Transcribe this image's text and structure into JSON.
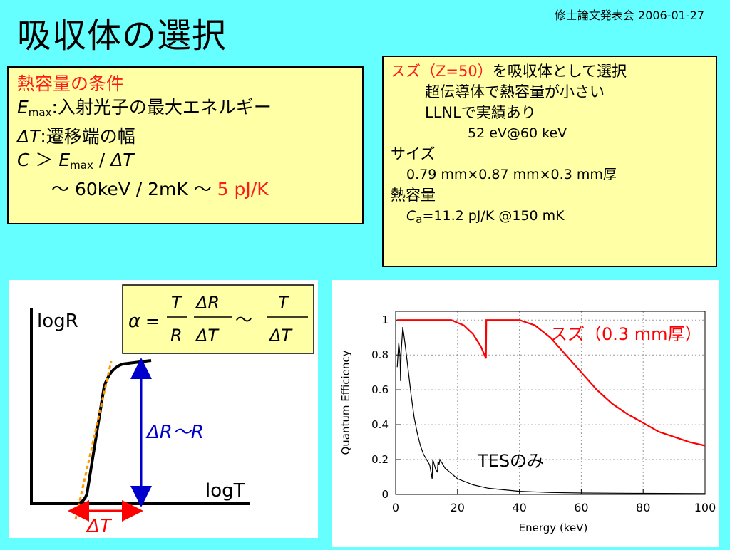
{
  "header": {
    "title": "吸収体の選択",
    "meta": "修士論文発表会 2006-01-27"
  },
  "conditions": {
    "heading": "熱容量の条件",
    "emax_sym": "E",
    "emax_sub": "max",
    "emax_desc": ":入射光子の最大エネルギー",
    "dt_sym": "ΔT",
    "dt_desc": ":遷移端の幅",
    "ineq_c": "C",
    "ineq_gt": " ＞ ",
    "ineq_e": "E",
    "ineq_sub": "max",
    "ineq_slash": " / ",
    "ineq_dt": "ΔT",
    "approx_text": "～ 60keV / 2mK ～ ",
    "approx_result": "5 pJ/K"
  },
  "tin": {
    "line1_red": "スズ（Z=50）",
    "line1_rest": "を吸収体として選択",
    "line2": "超伝導体で熱容量が小さい",
    "line3": "LLNLで実績あり",
    "line4": "52 eV@60 keV",
    "size_label": "サイズ",
    "size_value": "0.79 mm×0.87 mm×0.3 mm厚",
    "hc_label": "熱容量",
    "ca_sym": "C",
    "ca_sub": "a",
    "ca_value": "=11.2 pJ/K @150 mK"
  },
  "transition_plot": {
    "y_axis_label": "logR",
    "x_axis_label": "logT",
    "delta_r_label": "ΔR～R",
    "delta_t_label": "ΔT",
    "formula": {
      "alpha": "α",
      "eq": "=",
      "t1": "T",
      "r1": "R",
      "dr": "ΔR",
      "dt1": "ΔT",
      "tilde": "～",
      "t2": "T",
      "dt2": "ΔT"
    }
  },
  "chart_data": {
    "type": "line",
    "xlabel": "Energy (keV)",
    "ylabel": "Quantum Efficiency",
    "xlim": [
      0,
      100
    ],
    "ylim": [
      0,
      1.05
    ],
    "xticks": [
      0,
      20,
      40,
      60,
      80,
      100
    ],
    "yticks": [
      0,
      0.2,
      0.4,
      0.6,
      0.8,
      1
    ],
    "grid": true,
    "series": [
      {
        "name": "スズ（0.3 mm厚）",
        "color": "#ff0000",
        "points": [
          [
            0.5,
            1.0
          ],
          [
            10,
            1.0
          ],
          [
            18,
            1.0
          ],
          [
            22,
            0.97
          ],
          [
            25,
            0.92
          ],
          [
            27.5,
            0.85
          ],
          [
            29.2,
            0.78
          ],
          [
            29.3,
            1.0
          ],
          [
            33,
            1.0
          ],
          [
            40,
            1.0
          ],
          [
            45,
            0.97
          ],
          [
            50,
            0.9
          ],
          [
            55,
            0.8
          ],
          [
            60,
            0.7
          ],
          [
            65,
            0.6
          ],
          [
            70,
            0.52
          ],
          [
            75,
            0.46
          ],
          [
            80,
            0.41
          ],
          [
            85,
            0.36
          ],
          [
            90,
            0.33
          ],
          [
            95,
            0.3
          ],
          [
            100,
            0.28
          ]
        ]
      },
      {
        "name": "TESのみ",
        "color": "#000000",
        "points": [
          [
            0.5,
            0.73
          ],
          [
            1,
            0.87
          ],
          [
            1.4,
            0.8
          ],
          [
            1.6,
            0.65
          ],
          [
            1.8,
            0.82
          ],
          [
            2.3,
            0.96
          ],
          [
            3,
            0.87
          ],
          [
            4,
            0.72
          ],
          [
            5,
            0.57
          ],
          [
            6,
            0.44
          ],
          [
            7,
            0.35
          ],
          [
            8,
            0.28
          ],
          [
            9,
            0.23
          ],
          [
            10,
            0.2
          ],
          [
            11,
            0.17
          ],
          [
            11.5,
            0.12
          ],
          [
            11.8,
            0.09
          ],
          [
            12,
            0.2
          ],
          [
            12.5,
            0.17
          ],
          [
            13,
            0.14
          ],
          [
            13.5,
            0.13
          ],
          [
            13.7,
            0.19
          ],
          [
            14,
            0.17
          ],
          [
            14.3,
            0.2
          ],
          [
            15,
            0.18
          ],
          [
            16,
            0.15
          ],
          [
            18,
            0.12
          ],
          [
            20,
            0.09
          ],
          [
            25,
            0.055
          ],
          [
            30,
            0.035
          ],
          [
            40,
            0.018
          ],
          [
            50,
            0.011
          ],
          [
            60,
            0.008
          ],
          [
            80,
            0.006
          ],
          [
            100,
            0.005
          ]
        ]
      }
    ],
    "annotations": [
      "スズ（0.3 mm厚）",
      "TESのみ"
    ]
  }
}
